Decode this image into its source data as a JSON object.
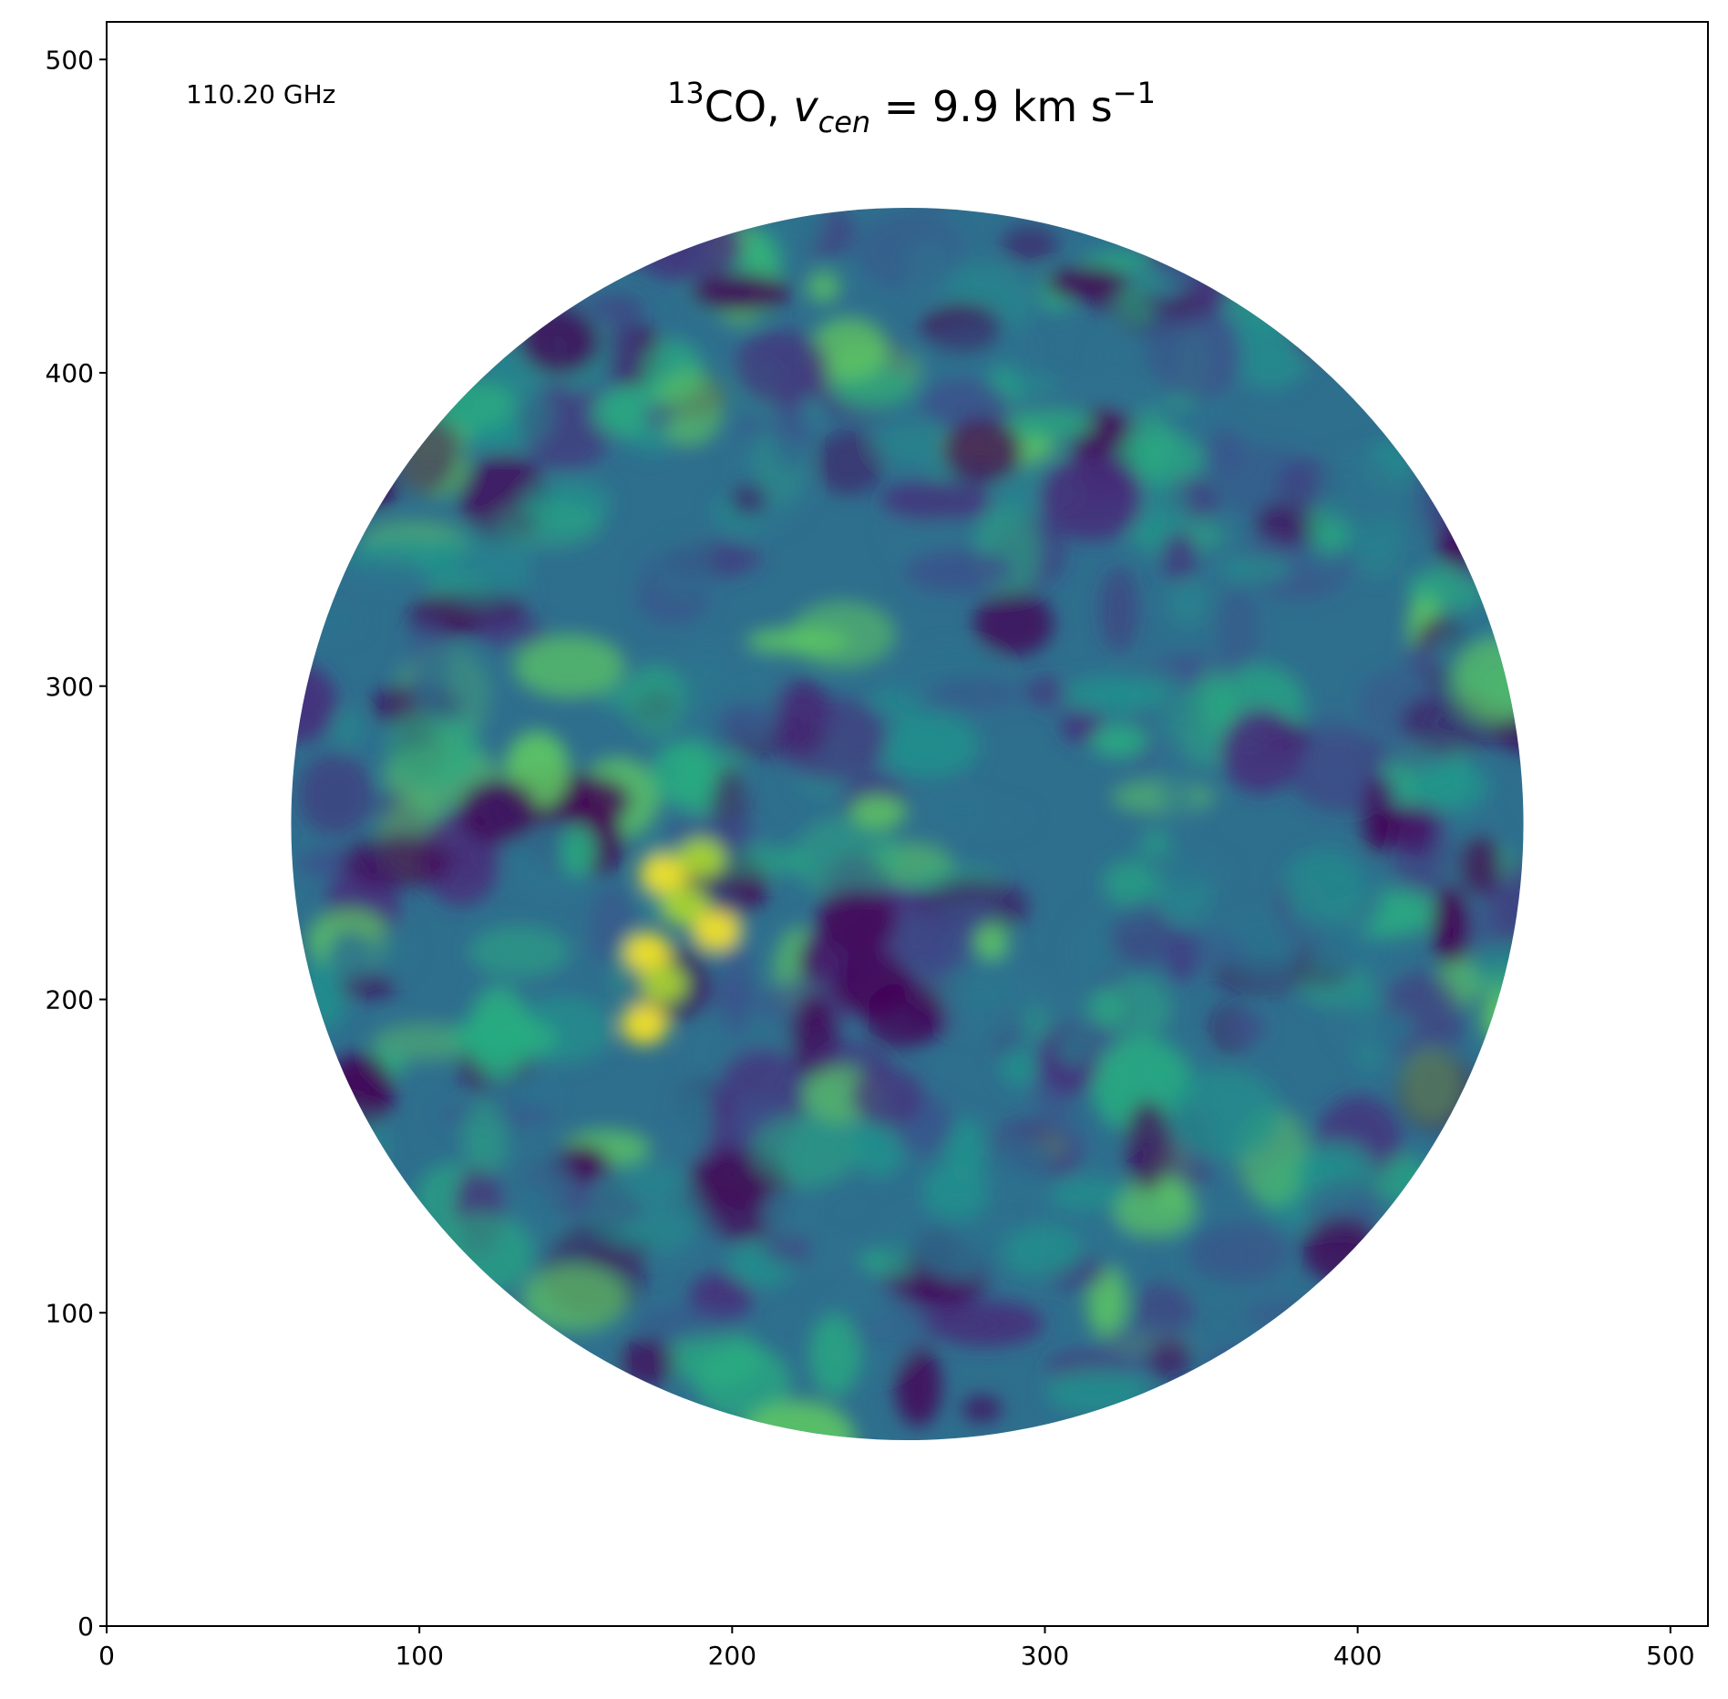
{
  "chart_data": {
    "type": "heatmap",
    "title": {
      "isotope_sup": "13",
      "molecule": "CO, ",
      "velocity_var": "v",
      "velocity_sub": "cen",
      "velocity_value": " =  9.9 km s",
      "unit_sup": "−1"
    },
    "frequency_label": "110.20 GHz",
    "xlim": [
      0,
      512
    ],
    "ylim": [
      0,
      512
    ],
    "x_ticks": [
      {
        "value": 0,
        "label": "0"
      },
      {
        "value": 100,
        "label": "100"
      },
      {
        "value": 200,
        "label": "200"
      },
      {
        "value": 300,
        "label": "300"
      },
      {
        "value": 400,
        "label": "400"
      },
      {
        "value": 500,
        "label": "500"
      }
    ],
    "y_ticks": [
      {
        "value": 0,
        "label": "0"
      },
      {
        "value": 100,
        "label": "100"
      },
      {
        "value": 200,
        "label": "200"
      },
      {
        "value": 300,
        "label": "300"
      },
      {
        "value": 400,
        "label": "400"
      },
      {
        "value": 500,
        "label": "500"
      }
    ],
    "colormap": "viridis",
    "colors": [
      "#440154",
      "#3b528b",
      "#21918c",
      "#5ec962",
      "#fde725"
    ],
    "mask": {
      "shape": "circle",
      "center": [
        256,
        256
      ],
      "radius": 197
    },
    "grid": false,
    "legend": "none"
  }
}
